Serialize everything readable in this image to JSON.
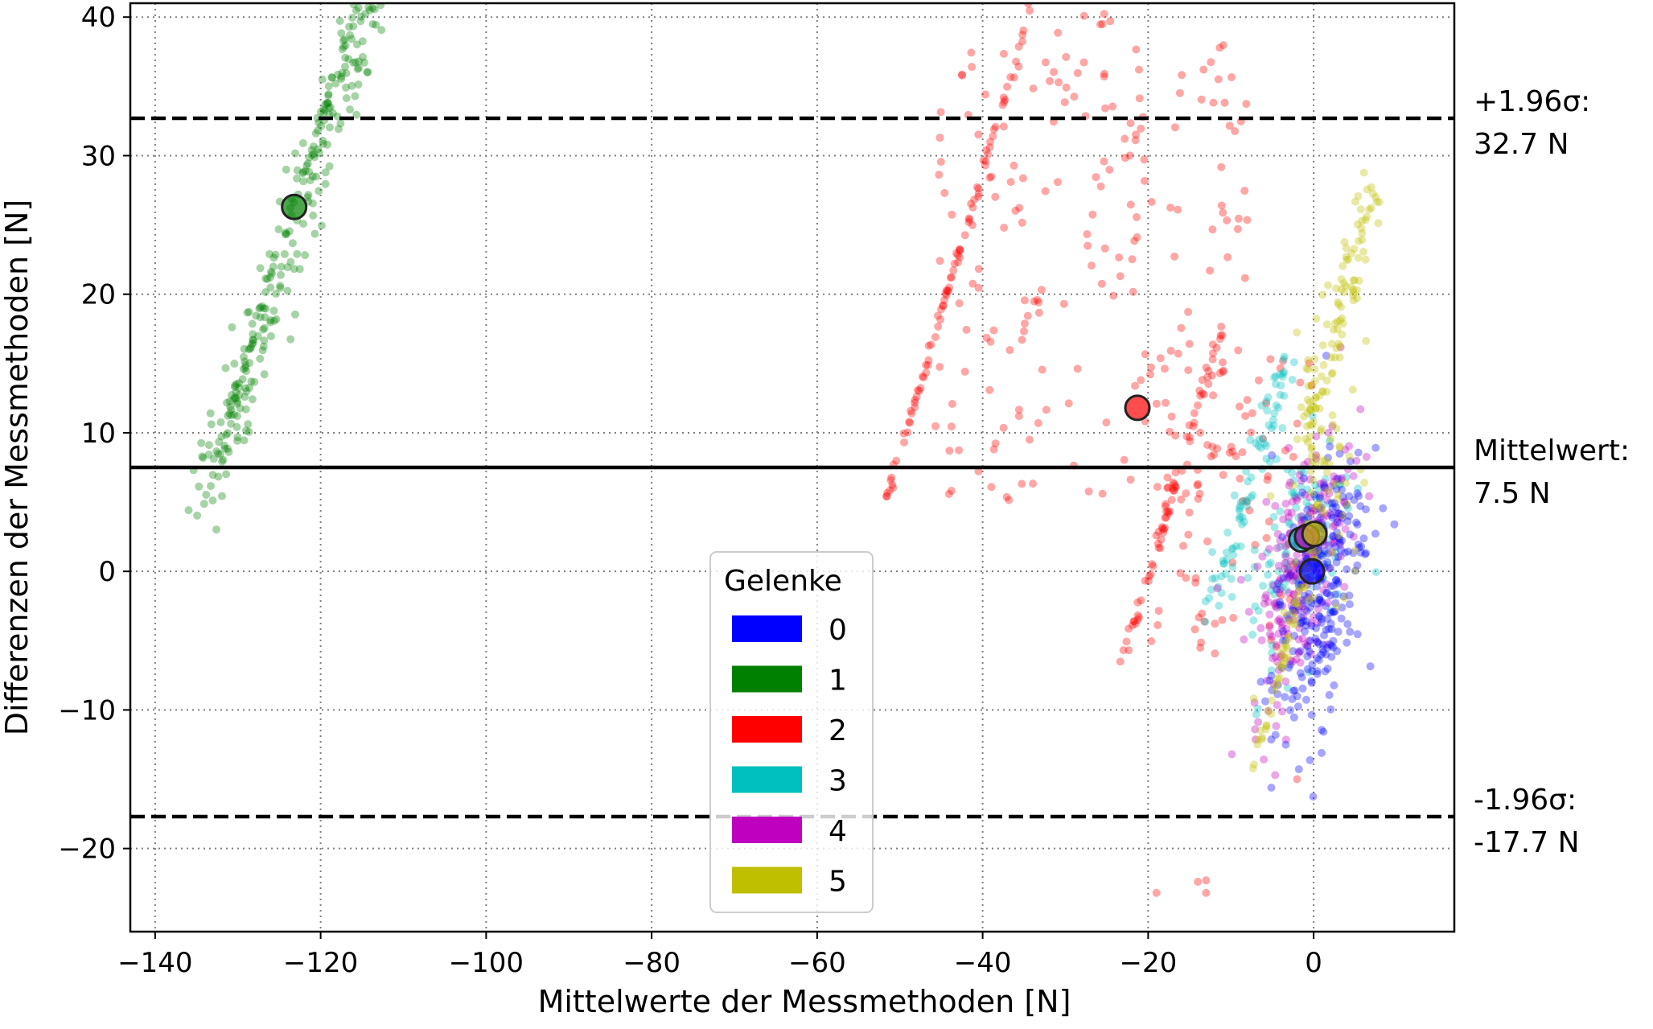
{
  "chart_data": {
    "type": "scatter",
    "title": "",
    "xlabel": "Mittelwerte der Messmethoden [N]",
    "ylabel": "Differenzen der Messmethoden [N]",
    "xlim": [
      -143,
      17
    ],
    "ylim": [
      -26,
      41
    ],
    "grid": true,
    "x_ticks": [
      -140,
      -120,
      -100,
      -80,
      -60,
      -40,
      -20,
      0
    ],
    "x_tick_labels": [
      "−140",
      "−120",
      "−100",
      "−80",
      "−60",
      "−40",
      "−20",
      "0"
    ],
    "y_ticks": [
      -20,
      -10,
      0,
      10,
      20,
      30,
      40
    ],
    "y_tick_labels": [
      "−20",
      "−10",
      "0",
      "10",
      "20",
      "30",
      "40"
    ],
    "reference_lines": [
      {
        "name": "upper",
        "y": 32.7,
        "style": "dashed",
        "label_line1": "+1.96σ:",
        "label_line2": "32.7 N"
      },
      {
        "name": "mean",
        "y": 7.5,
        "style": "solid",
        "label_line1": "Mittelwert:",
        "label_line2": "7.5 N"
      },
      {
        "name": "lower",
        "y": -17.7,
        "style": "dashed",
        "label_line1": "-1.96σ:",
        "label_line2": "-17.7 N"
      }
    ],
    "legend": {
      "title": "Gelenke",
      "placement": "lower center"
    },
    "series": [
      {
        "name": "0",
        "color": "#0000ff",
        "mean_point": [
          -0.2,
          0.0
        ],
        "clusters": [
          {
            "type": "cloud",
            "cx": 0.5,
            "cy": -2,
            "sx": 2.8,
            "sy": 5.5,
            "corr": 0.55,
            "n": 260
          }
        ]
      },
      {
        "name": "1",
        "color": "#008000",
        "mean_point": [
          -123.2,
          26.3
        ],
        "clusters": [
          {
            "type": "line",
            "x0": -133,
            "y0": 7.5,
            "x1": -115.5,
            "y1": 41,
            "n": 70,
            "jx": 0.2,
            "jy": 0.2
          },
          {
            "type": "band",
            "x0": -134,
            "y0": 5,
            "x1": -114,
            "y1": 41,
            "n": 210,
            "spread": 2.2
          }
        ]
      },
      {
        "name": "2",
        "color": "#ff0000",
        "mean_point": [
          -21.3,
          11.8
        ],
        "clusters": [
          {
            "type": "line",
            "x0": -52,
            "y0": 4.5,
            "x1": -34,
            "y1": 41,
            "n": 90,
            "jx": 0.15,
            "jy": 0.2
          },
          {
            "type": "line",
            "x0": -23,
            "y0": -6.5,
            "x1": -11,
            "y1": 18,
            "n": 70,
            "jx": 0.3,
            "jy": 0.3
          },
          {
            "type": "box",
            "xmin": -46,
            "xmax": -8,
            "ymin": 5,
            "ymax": 38,
            "n": 170
          },
          {
            "type": "box",
            "xmin": -20,
            "xmax": 0,
            "ymin": -6,
            "ymax": 16,
            "n": 90
          },
          {
            "type": "box",
            "xmin": -32,
            "xmax": -20,
            "ymin": 20,
            "ymax": 41,
            "n": 25
          }
        ]
      },
      {
        "name": "3",
        "color": "#00bfbf",
        "mean_point": [
          -1.5,
          2.3
        ],
        "clusters": [
          {
            "type": "band",
            "x0": -12,
            "y0": -2,
            "x1": -3,
            "y1": 15.5,
            "n": 80,
            "spread": 1.5
          },
          {
            "type": "cloud",
            "cx": -1.5,
            "cy": 2,
            "sx": 3.2,
            "sy": 4.5,
            "corr": 0.5,
            "n": 120
          }
        ]
      },
      {
        "name": "4",
        "color": "#bf00bf",
        "mean_point": [
          -0.8,
          2.5
        ],
        "clusters": [
          {
            "type": "cloud",
            "cx": -1.5,
            "cy": 0.5,
            "sx": 3.0,
            "sy": 5.0,
            "corr": 0.6,
            "n": 240
          }
        ]
      },
      {
        "name": "5",
        "color": "#bfbf00",
        "mean_point": [
          0.1,
          2.7
        ],
        "clusters": [
          {
            "type": "band",
            "x0": -1,
            "y0": 10,
            "x1": 7.5,
            "y1": 28,
            "n": 110,
            "spread": 1.7
          },
          {
            "type": "line",
            "x0": -7.5,
            "y0": -15,
            "x1": 0.5,
            "y1": 3.5,
            "n": 55,
            "jx": 0.25,
            "jy": 0.3
          },
          {
            "type": "cloud",
            "cx": 0.5,
            "cy": 6,
            "sx": 2.5,
            "sy": 5,
            "corr": 0.5,
            "n": 60
          }
        ]
      }
    ],
    "extra_points": [
      {
        "series": "2",
        "points": [
          [
            -19,
            -23.2
          ],
          [
            -13,
            -22.3
          ],
          [
            -13,
            -23.2
          ],
          [
            -14,
            -22.4
          ],
          [
            -2,
            -15
          ]
        ]
      }
    ]
  }
}
